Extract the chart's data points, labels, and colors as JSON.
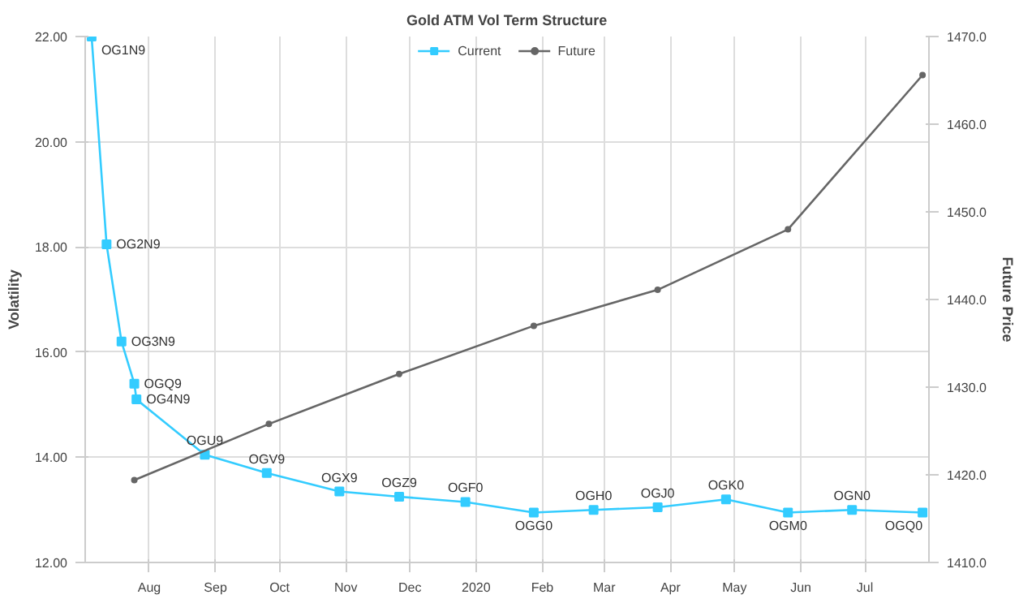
{
  "chart_data": {
    "type": "line",
    "title": "Gold ATM Vol Term Structure",
    "ylabel": "Volatility",
    "y2label": "Future Price",
    "xlim": [
      "2019-07-02",
      "2020-07-31"
    ],
    "xticks": [
      {
        "value": "2019-08-01",
        "label": "Aug"
      },
      {
        "value": "2019-09-01",
        "label": "Sep"
      },
      {
        "value": "2019-10-01",
        "label": "Oct"
      },
      {
        "value": "2019-11-01",
        "label": "Nov"
      },
      {
        "value": "2019-12-01",
        "label": "Dec"
      },
      {
        "value": "2020-01-01",
        "label": "2020"
      },
      {
        "value": "2020-02-01",
        "label": "Feb"
      },
      {
        "value": "2020-03-01",
        "label": "Mar"
      },
      {
        "value": "2020-04-01",
        "label": "Apr"
      },
      {
        "value": "2020-05-01",
        "label": "May"
      },
      {
        "value": "2020-06-01",
        "label": "Jun"
      },
      {
        "value": "2020-07-01",
        "label": "Jul"
      }
    ],
    "ylim": [
      12,
      22
    ],
    "yticks": [
      {
        "value": 12,
        "label": "12.00"
      },
      {
        "value": 14,
        "label": "14.00"
      },
      {
        "value": 16,
        "label": "16.00"
      },
      {
        "value": 18,
        "label": "18.00"
      },
      {
        "value": 20,
        "label": "20.00"
      },
      {
        "value": 22,
        "label": "22.00"
      }
    ],
    "y2lim": [
      1410,
      1470
    ],
    "y2ticks": [
      {
        "value": 1410,
        "label": "1410.0"
      },
      {
        "value": 1420,
        "label": "1420.0"
      },
      {
        "value": 1430,
        "label": "1430.0"
      },
      {
        "value": 1440,
        "label": "1440.0"
      },
      {
        "value": 1450,
        "label": "1450.0"
      },
      {
        "value": 1460,
        "label": "1460.0"
      },
      {
        "value": 1470,
        "label": "1470.0"
      }
    ],
    "grid": true,
    "legend": "top",
    "series": [
      {
        "name": "Current",
        "color": "#33ccff",
        "marker": "square",
        "x": [
          "2019-07-05",
          "2019-07-12",
          "2019-07-19",
          "2019-07-25",
          "2019-07-26",
          "2019-08-27",
          "2019-09-25",
          "2019-10-29",
          "2019-11-26",
          "2019-12-27",
          "2020-01-28",
          "2020-02-25",
          "2020-03-26",
          "2020-04-27",
          "2020-05-26",
          "2020-06-25",
          "2020-07-28"
        ],
        "values": [
          22.0,
          18.05,
          16.2,
          15.4,
          15.1,
          14.05,
          13.7,
          13.35,
          13.25,
          13.15,
          12.95,
          13.0,
          13.05,
          13.2,
          12.95,
          13.0,
          12.95
        ]
      },
      {
        "name": "Future",
        "color": "#666666",
        "marker": "circle",
        "axis": "y2",
        "x": [
          "2019-07-25",
          "2019-09-26",
          "2019-11-26",
          "2020-01-28",
          "2020-03-26",
          "2020-05-26",
          "2020-07-28"
        ],
        "values": [
          1419.4,
          1425.8,
          1431.5,
          1437.0,
          1441.1,
          1448.0,
          1465.6
        ]
      }
    ],
    "annotations": [
      {
        "text": "OG1N9",
        "x": "2019-07-05",
        "y": 22.0
      },
      {
        "text": "OG2N9",
        "x": "2019-07-12",
        "y": 18.05
      },
      {
        "text": "OG3N9",
        "x": "2019-07-19",
        "y": 16.2
      },
      {
        "text": "OGQ9",
        "x": "2019-07-25",
        "y": 15.4
      },
      {
        "text": "OG4N9",
        "x": "2019-07-26",
        "y": 15.1
      },
      {
        "text": "OGU9",
        "x": "2019-08-27",
        "y": 14.05
      },
      {
        "text": "OGV9",
        "x": "2019-09-25",
        "y": 13.7
      },
      {
        "text": "OGX9",
        "x": "2019-10-29",
        "y": 13.35
      },
      {
        "text": "OGZ9",
        "x": "2019-11-26",
        "y": 13.25
      },
      {
        "text": "OGF0",
        "x": "2019-12-27",
        "y": 13.15
      },
      {
        "text": "OGG0",
        "x": "2020-01-28",
        "y": 12.95
      },
      {
        "text": "OGH0",
        "x": "2020-02-25",
        "y": 13.0
      },
      {
        "text": "OGJ0",
        "x": "2020-03-26",
        "y": 13.05
      },
      {
        "text": "OGK0",
        "x": "2020-04-27",
        "y": 13.2
      },
      {
        "text": "OGM0",
        "x": "2020-05-26",
        "y": 12.95
      },
      {
        "text": "OGN0",
        "x": "2020-06-25",
        "y": 13.0
      },
      {
        "text": "OGQ0",
        "x": "2020-07-28",
        "y": 12.95
      }
    ]
  }
}
